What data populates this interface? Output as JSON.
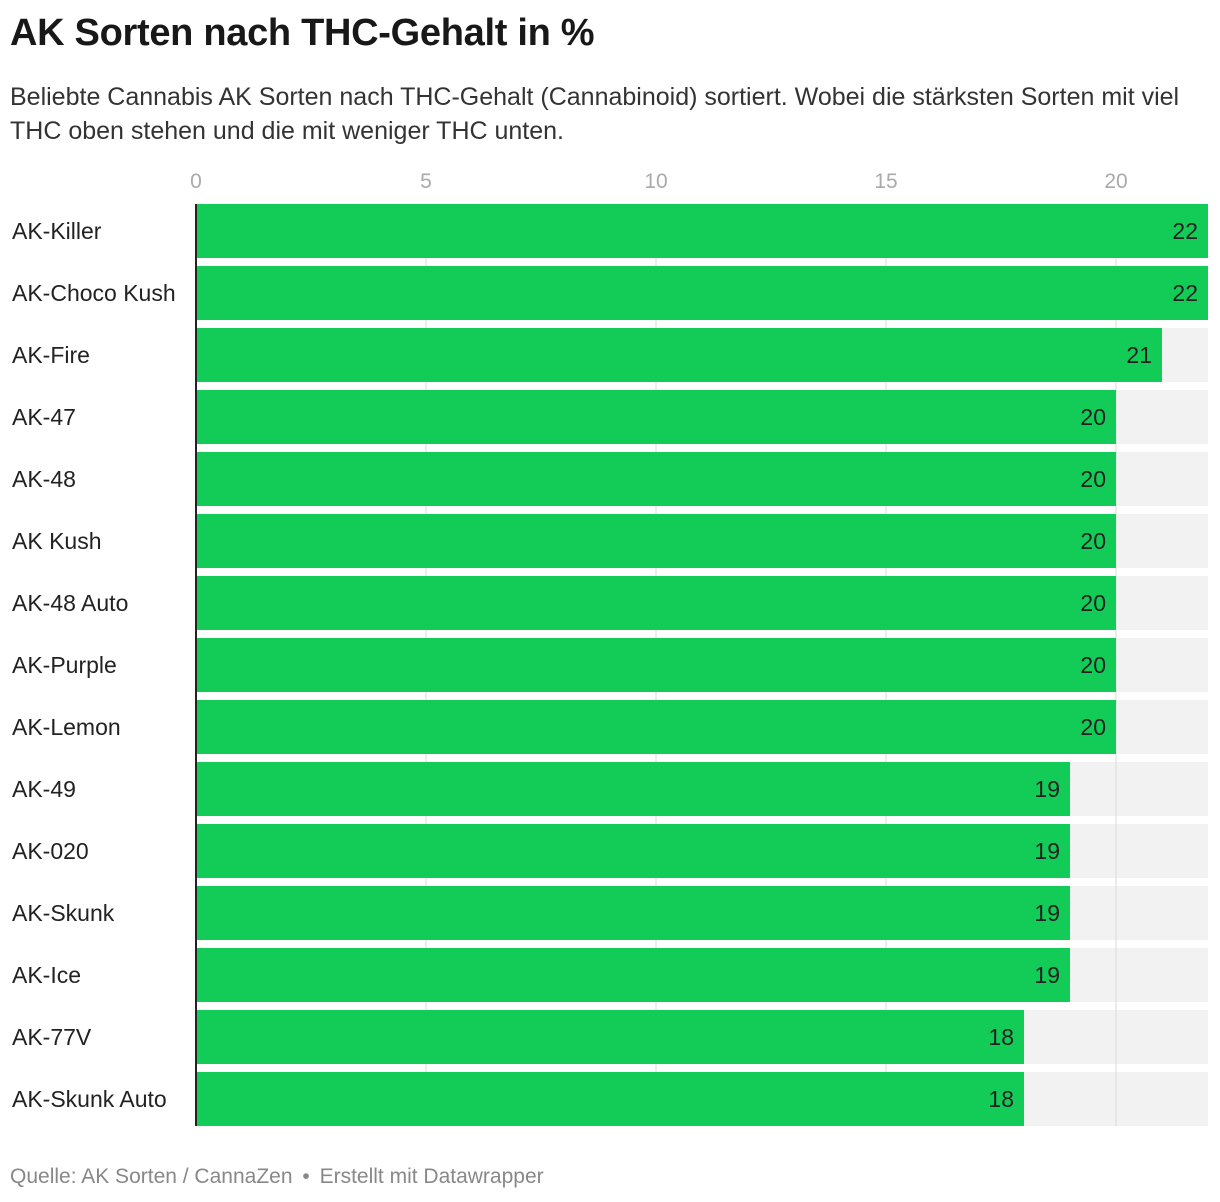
{
  "header": {
    "title": "AK Sorten nach THC-Gehalt in %",
    "subtitle": "Beliebte Cannabis AK Sorten nach THC-Gehalt (Cannabinoid) sortiert. Wobei die stärksten Sorten mit viel THC oben stehen und die mit weniger THC unten."
  },
  "footer": {
    "source": "Quelle: AK Sorten / CannaZen",
    "separator": "•",
    "credit": "Erstellt mit Datawrapper"
  },
  "colors": {
    "bar": "#13cc58",
    "track": "#f2f2f2",
    "grid": "#d9d9d9",
    "axis": "#222222",
    "tick_text": "#aaaaaa"
  },
  "chart_data": {
    "type": "bar",
    "orientation": "horizontal",
    "title": "AK Sorten nach THC-Gehalt in %",
    "xlabel": "",
    "ylabel": "",
    "xlim": [
      0,
      22
    ],
    "xticks": [
      0,
      5,
      10,
      15,
      20
    ],
    "grid": true,
    "categories": [
      "AK-Killer",
      "AK-Choco Kush",
      "AK-Fire",
      "AK-47",
      "AK-48",
      "AK Kush",
      "AK-48 Auto",
      "AK-Purple",
      "AK-Lemon",
      "AK-49",
      "AK-020",
      "AK-Skunk",
      "AK-Ice",
      "AK-77V",
      "AK-Skunk Auto"
    ],
    "values": [
      22,
      22,
      21,
      20,
      20,
      20,
      20,
      20,
      20,
      19,
      19,
      19,
      19,
      18,
      18
    ]
  }
}
